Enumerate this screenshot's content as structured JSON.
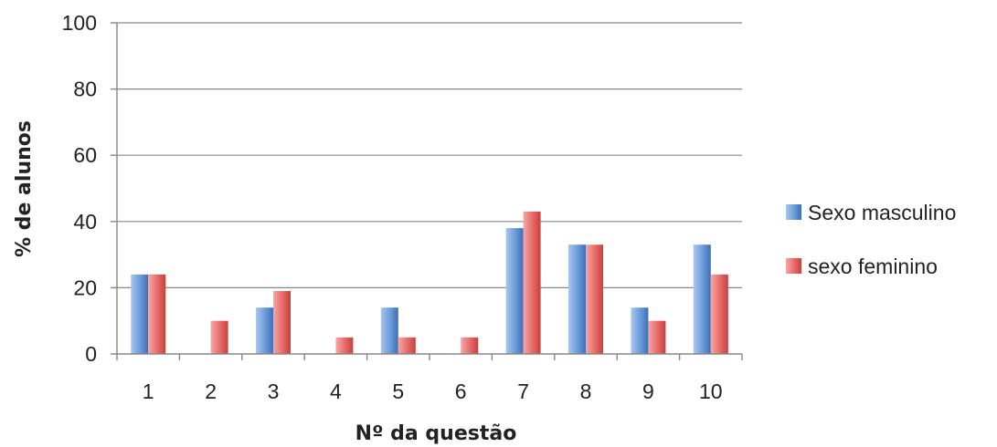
{
  "chart_data": {
    "type": "bar",
    "title": "",
    "xlabel": "Nº da questão",
    "ylabel": "% de alunos",
    "categories": [
      "1",
      "2",
      "3",
      "4",
      "5",
      "6",
      "7",
      "8",
      "9",
      "10"
    ],
    "series": [
      {
        "name": "Sexo masculino",
        "values": [
          24,
          0,
          14,
          0,
          14,
          0,
          38,
          33,
          14,
          33
        ],
        "color": "#4f81bd"
      },
      {
        "name": "sexo feminino",
        "values": [
          24,
          10,
          19,
          5,
          5,
          5,
          43,
          33,
          10,
          24
        ],
        "color": "#e0504d"
      }
    ],
    "ylim": [
      0,
      100
    ],
    "yticks": [
      "0",
      "20",
      "40",
      "60",
      "80",
      "100"
    ],
    "grid": true,
    "legend_position": "right"
  }
}
